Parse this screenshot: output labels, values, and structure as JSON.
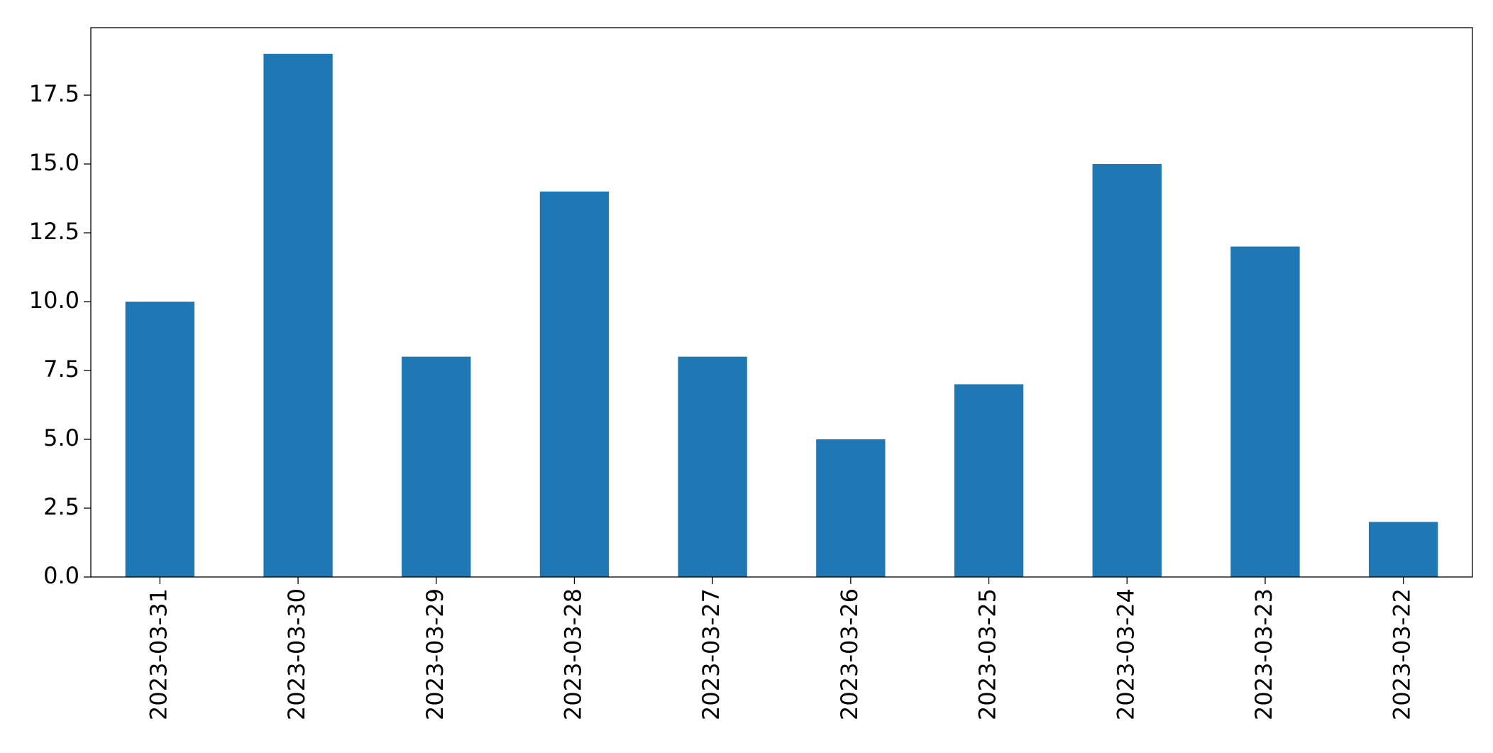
{
  "chart_data": {
    "type": "bar",
    "categories": [
      "2023-03-31",
      "2023-03-30",
      "2023-03-29",
      "2023-03-28",
      "2023-03-27",
      "2023-03-26",
      "2023-03-25",
      "2023-03-24",
      "2023-03-23",
      "2023-03-22"
    ],
    "values": [
      10,
      19,
      8,
      14,
      8,
      5,
      7,
      15,
      12,
      2
    ],
    "color": "#1f77b4",
    "ylim": [
      0,
      19.95
    ],
    "yticks": [
      {
        "value": 0,
        "label": "0.0"
      },
      2.5,
      {
        "value": 5,
        "label": "5.0"
      },
      7.5,
      {
        "value": 10,
        "label": "10.0"
      },
      12.5,
      {
        "value": 15,
        "label": "15.0"
      },
      17.5
    ],
    "grid": false
  }
}
